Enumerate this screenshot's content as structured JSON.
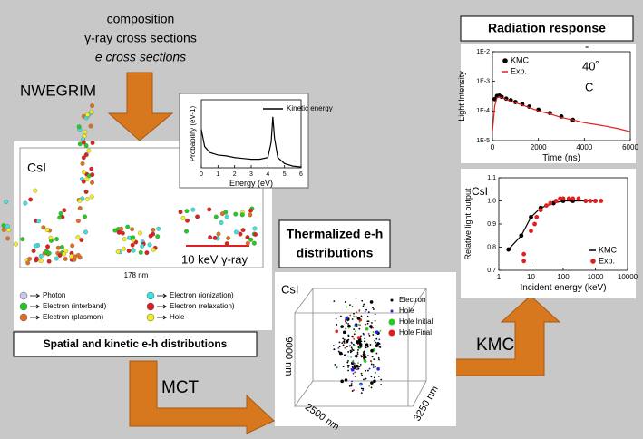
{
  "inputs": [
    "composition",
    "γ-ray cross sections",
    "e cross sections"
  ],
  "steps": {
    "nwegrim": "NWEGRIM",
    "mct": "MCT",
    "kmc": "KMC"
  },
  "spatial_panel": {
    "material": "CsI",
    "scale_bar": "178 nm",
    "source": "10 keV γ-ray",
    "legend": [
      {
        "name": "Photon",
        "color": "#c8c8f0"
      },
      {
        "name": "Electron (interband)",
        "color": "#22cc22"
      },
      {
        "name": "Electron (plasmon)",
        "color": "#e07020"
      },
      {
        "name": "Electron (ionization)",
        "color": "#40e0e0"
      },
      {
        "name": "Electron (relaxation)",
        "color": "#e02020"
      },
      {
        "name": "Hole",
        "color": "#f0f020"
      }
    ],
    "caption": "Spatial and kinetic e-h distributions",
    "inset_chart": {
      "type": "line",
      "xlabel": "Energy (eV)",
      "ylabel": "Probability (eV-1)",
      "xlim": [
        0,
        6
      ],
      "ylim": [
        0,
        0.8
      ],
      "xticks": [
        0,
        1,
        2,
        3,
        4,
        5,
        6
      ],
      "legend": "upper right",
      "series": [
        {
          "name": "Kinetic energy",
          "color": "#000000",
          "line": true,
          "x": [
            0,
            0.2,
            0.5,
            1,
            1.5,
            2,
            2.5,
            3,
            3.5,
            4,
            4.2,
            4.3,
            4.4,
            4.6,
            5,
            5.5,
            6
          ],
          "values": [
            0.45,
            0.25,
            0.18,
            0.15,
            0.14,
            0.12,
            0.11,
            0.1,
            0.1,
            0.12,
            0.3,
            0.6,
            0.35,
            0.12,
            0.05,
            0.02,
            0.01
          ]
        }
      ]
    }
  },
  "thermalized": {
    "title": [
      "Thermalized e-h",
      "distributions"
    ],
    "material": "CsI",
    "legend": [
      {
        "name": "Electron",
        "color": "#000000"
      },
      {
        "name": "Hole",
        "color": "#2020e0"
      },
      {
        "name": "Hole Initial",
        "color": "#22cc22"
      },
      {
        "name": "Hole Final",
        "color": "#e02020"
      }
    ],
    "axes": [
      "9000 nm",
      "2500 nm",
      "3250 nm"
    ]
  },
  "radiation_response": {
    "title": "Radiation response",
    "decay_chart": {
      "type": "line",
      "annotation": [
        "-",
        "40˚",
        "C"
      ],
      "xlabel": "Time (ns)",
      "ylabel": "Light Intensity",
      "xlim": [
        0,
        6000
      ],
      "ylim": [
        1e-05,
        0.01
      ],
      "ylog": true,
      "xticks": [
        0,
        2000,
        4000,
        6000
      ],
      "yticks": [
        {
          "value": 0.01,
          "label": "1E-2"
        },
        {
          "value": 0.001,
          "label": "1E-3"
        },
        {
          "value": 0.0001,
          "label": "1E-4"
        },
        {
          "value": 1e-05,
          "label": "1E-5"
        }
      ],
      "legend": "upper left",
      "series": [
        {
          "name": "KMC",
          "color": "#000000",
          "marker": true,
          "x": [
            100,
            200,
            300,
            400,
            600,
            800,
            1000,
            1300,
            1600,
            2000,
            2500,
            3000,
            3500
          ],
          "values": [
            0.00025,
            0.00032,
            0.00033,
            0.0003,
            0.00026,
            0.00023,
            0.0002,
            0.00017,
            0.00014,
            0.00011,
            8.5e-05,
            6.5e-05,
            5e-05
          ]
        },
        {
          "name": "Exp.",
          "color": "#e02020",
          "line": true,
          "x": [
            0,
            100,
            200,
            300,
            500,
            800,
            1000,
            1500,
            2000,
            2500,
            3000,
            3500,
            4000,
            4500,
            5000,
            5500,
            6000
          ],
          "values": [
            2e-05,
            0.00015,
            0.00028,
            0.0003,
            0.00026,
            0.00021,
            0.00019,
            0.00014,
            0.0001,
            8e-05,
            6e-05,
            5e-05,
            4e-05,
            3.5e-05,
            3e-05,
            2.5e-05,
            2e-05
          ]
        }
      ]
    },
    "yield_chart": {
      "type": "line",
      "material": "CsI",
      "xlabel": "Incident energy (keV)",
      "ylabel": "Relative light output",
      "xlim": [
        1,
        10000
      ],
      "xlog": true,
      "ylim": [
        0.7,
        1.1
      ],
      "xticks": [
        1,
        10,
        100,
        1000,
        10000
      ],
      "yticks": [
        0.7,
        0.8,
        0.9,
        {
          "value": 1.0,
          "label": "1.0"
        },
        1.1
      ],
      "legend": "lower right",
      "series": [
        {
          "name": "KMC",
          "color": "#000000",
          "line": true,
          "marker": true,
          "x": [
            2,
            5,
            10,
            20,
            50,
            100,
            200,
            500,
            1000
          ],
          "values": [
            0.79,
            0.85,
            0.93,
            0.97,
            0.99,
            1.0,
            1.0,
            1.0,
            1.0
          ]
        },
        {
          "name": "Exp.",
          "color": "#e02020",
          "marker": true,
          "x": [
            6,
            6,
            10,
            13,
            15,
            20,
            30,
            40,
            60,
            80,
            100,
            150,
            200,
            300,
            500,
            700,
            1000,
            1500
          ],
          "values": [
            0.74,
            0.77,
            0.87,
            0.9,
            0.93,
            0.96,
            0.98,
            0.99,
            1.0,
            1.01,
            1.01,
            1.01,
            1.01,
            1.01,
            1.0,
            1.0,
            1.0,
            1.0
          ]
        }
      ]
    }
  }
}
